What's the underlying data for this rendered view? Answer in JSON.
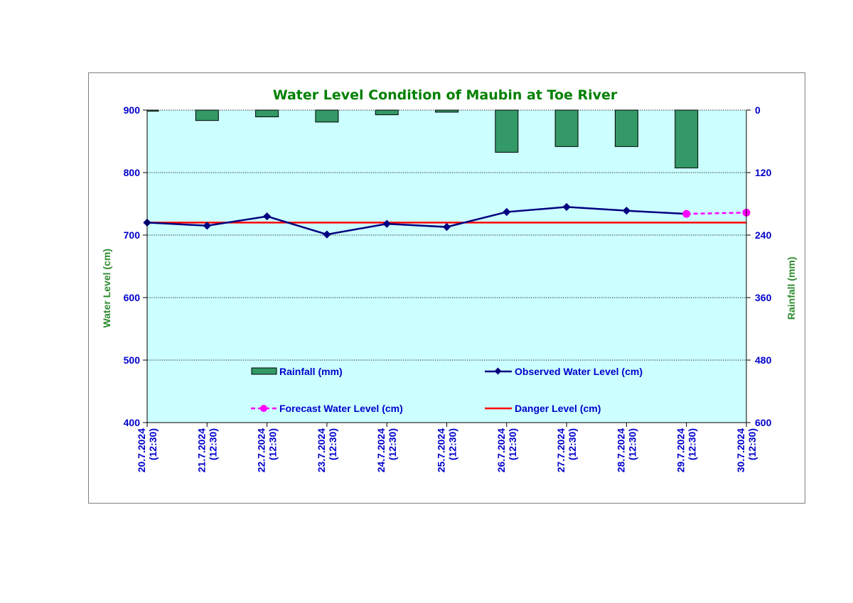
{
  "chart_data": {
    "type": "bar+line",
    "title": "Water Level Condition of  Maubin at Toe River",
    "ylabel": "Water Level (cm)",
    "y2label": "Rainfall (mm)",
    "categories": [
      [
        "20.7.2024",
        "(12:30)"
      ],
      [
        "21.7.2024",
        "(12:30)"
      ],
      [
        "22.7.2024",
        "(12:30)"
      ],
      [
        "23.7.2024",
        "(12:30)"
      ],
      [
        "24.7.2024",
        "(12:30)"
      ],
      [
        "25.7.2024",
        "(12:30)"
      ],
      [
        "26.7.2024",
        "(12:30)"
      ],
      [
        "27.7.2024",
        "(12:30)"
      ],
      [
        "28.7.2024",
        "(12:30)"
      ],
      [
        "29.7.2024",
        "(12:30)"
      ],
      [
        "30.7.2024",
        "(12:30)"
      ]
    ],
    "ylim": [
      400,
      900
    ],
    "yticks": [
      900,
      800,
      700,
      600,
      500,
      400
    ],
    "y2lim": [
      0,
      600
    ],
    "y2ticks": [
      0,
      120,
      240,
      360,
      480,
      600
    ],
    "y2_inverted": true,
    "grid": true,
    "series": [
      {
        "name": "Rainfall (mm)",
        "kind": "bar",
        "axis": "right",
        "color": "#339966",
        "values": [
          2,
          20,
          13,
          23,
          9,
          4,
          81,
          70,
          70,
          111,
          null
        ]
      },
      {
        "name": "Observed Water Level (cm)",
        "kind": "line",
        "axis": "left",
        "color": "#000080",
        "values": [
          720,
          715,
          730,
          701,
          718,
          713,
          737,
          745,
          739,
          734,
          null
        ]
      },
      {
        "name": "Forecast Water Level (cm)",
        "kind": "line-dashed",
        "axis": "left",
        "color": "#ff00ff",
        "values": [
          null,
          null,
          null,
          null,
          null,
          null,
          null,
          null,
          null,
          734,
          736
        ]
      },
      {
        "name": "Danger Level (cm)",
        "kind": "hline",
        "axis": "left",
        "color": "#ff0000",
        "value": 720
      }
    ],
    "colors": {
      "plot_background": "#ccffff",
      "tick_text": "#0000cc",
      "title": "#008000"
    }
  }
}
